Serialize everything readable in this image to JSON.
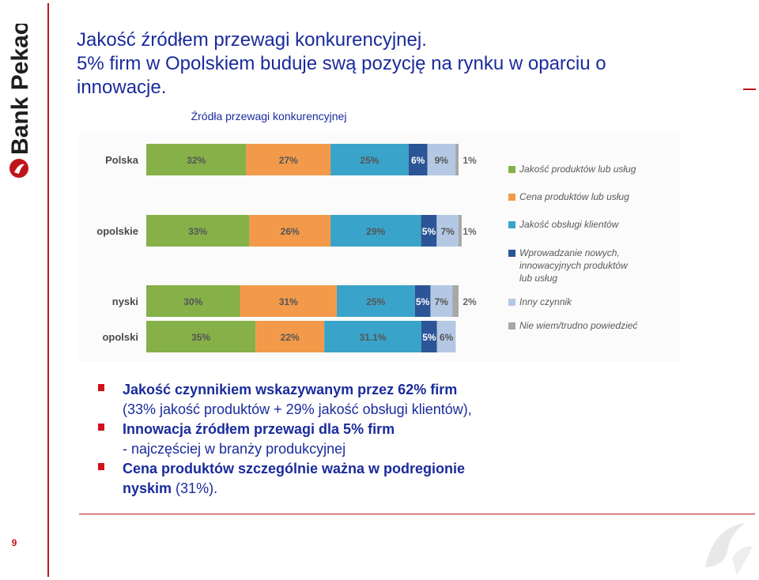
{
  "brand": {
    "name": "Bank Pekao",
    "accent": "#c0141c"
  },
  "page_number": "9",
  "title": {
    "line1": "Jakość źródłem przewagi konkurencyjnej.",
    "line2": "5% firm w  Opolskiem buduje swą pozycję na rynku w oparciu o",
    "line3": "innowacje."
  },
  "chart_data": {
    "type": "bar",
    "stacked": true,
    "orientation": "horizontal",
    "title": "Źródła przewagi konkurencyjnej",
    "categories": [
      "Polska",
      "opolskie",
      "nyski",
      "opolski"
    ],
    "series": [
      {
        "name": "Jakość produktów lub usług",
        "color": "#86b048",
        "values": [
          32,
          33,
          30,
          35
        ],
        "labels": [
          "32%",
          "33%",
          "30%",
          "35%"
        ]
      },
      {
        "name": "Cena produktów lub usług",
        "color": "#f29a4a",
        "values": [
          27,
          26,
          31,
          22
        ],
        "labels": [
          "27%",
          "26%",
          "31%",
          "22%"
        ]
      },
      {
        "name": "Jakość obsługi klientów",
        "color": "#3aa3c9",
        "values": [
          25,
          29,
          25,
          31.1
        ],
        "labels": [
          "25%",
          "29%",
          "25%",
          "31.1%"
        ]
      },
      {
        "name": "Wprowadzanie nowych, innowacyjnych produktów lub usług",
        "legend_lines": [
          "Wprowadzanie nowych,",
          "innowacyjnych produktów",
          "lub usług"
        ],
        "color": "#2b5596",
        "values": [
          6,
          5,
          5,
          5
        ],
        "labels": [
          "6%",
          "5%",
          "5%",
          "5%"
        ]
      },
      {
        "name": "Inny czynnik",
        "color": "#b4c8e3",
        "values": [
          9,
          7,
          7,
          6
        ],
        "labels": [
          "9%",
          "7%",
          "7%",
          "6%"
        ]
      },
      {
        "name": "Nie wiem/trudno powiedzieć",
        "color": "#a8a8a8",
        "values": [
          1,
          1,
          2,
          0
        ],
        "labels": [
          "1%",
          "1%",
          "2%",
          ""
        ]
      }
    ],
    "xlim": [
      0,
      100
    ],
    "grid": false,
    "legend_position": "right"
  },
  "bullets": [
    {
      "bold": "Jakość czynnikiem wskazywanym przez 62% firm",
      "rest": "",
      "continuation": "(33% jakość produktów + 29% jakość obsługi klientów),"
    },
    {
      "bold": "Innowacja źródłem przewagi dla 5% firm",
      "rest": "",
      "continuation": "- najczęściej w branży produkcyjnej"
    },
    {
      "bold": "Cena produktów szczególnie ważna w podregionie",
      "rest": "",
      "continuation_bold": "nyskim",
      "continuation": " (31%)."
    }
  ]
}
